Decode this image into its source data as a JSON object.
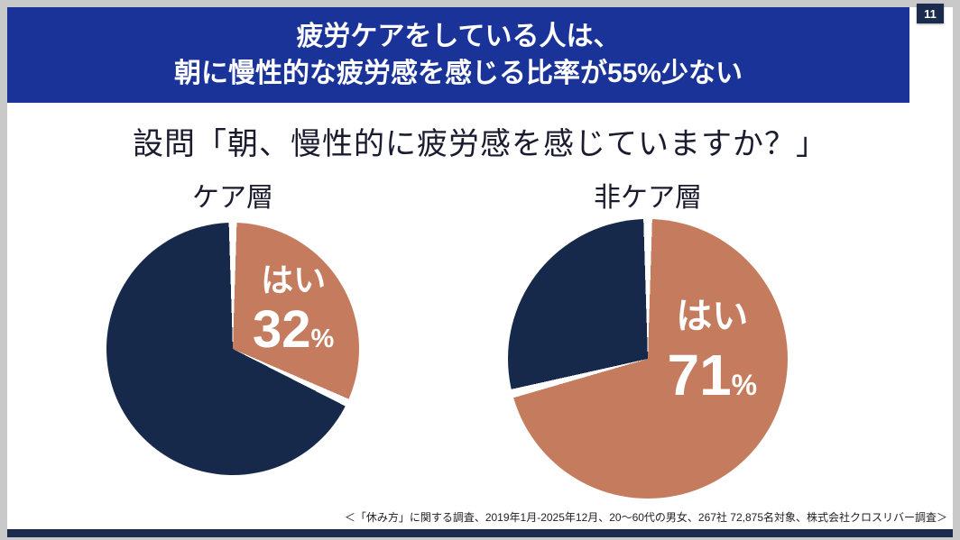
{
  "slide_number": "11",
  "header": {
    "line1": "疲労ケアをしている人は、",
    "line2": "朝に慢性的な疲労感を感じる比率が55%少ない"
  },
  "question": "設問「朝、慢性的に疲労感を感じていますか？」",
  "footnote": "＜「休み方」に関する調査、2019年1月-2025年12月、20～60代の男女、267社 72,875名対象、株式会社クロスリバー調査＞",
  "colors": {
    "header_bg": "#1a3399",
    "pie_yes": "#c57c5e",
    "pie_no": "#16294b",
    "footer_bar": "#1b2b4d",
    "badge_bg": "#1b2b4d",
    "frame": "#c9c9c9"
  },
  "chart_data": [
    {
      "type": "pie",
      "title": "ケア層",
      "unit": "%",
      "start_angle_deg": 0,
      "direction": "clockwise",
      "slices": [
        {
          "label": "はい",
          "value": 32,
          "color": "#c57c5e"
        },
        {
          "label": "",
          "value": 68,
          "color": "#16294b"
        }
      ]
    },
    {
      "type": "pie",
      "title": "非ケア層",
      "unit": "%",
      "start_angle_deg": 0,
      "direction": "clockwise",
      "slices": [
        {
          "label": "はい",
          "value": 71,
          "color": "#c57c5e"
        },
        {
          "label": "",
          "value": 29,
          "color": "#16294b"
        }
      ]
    }
  ]
}
